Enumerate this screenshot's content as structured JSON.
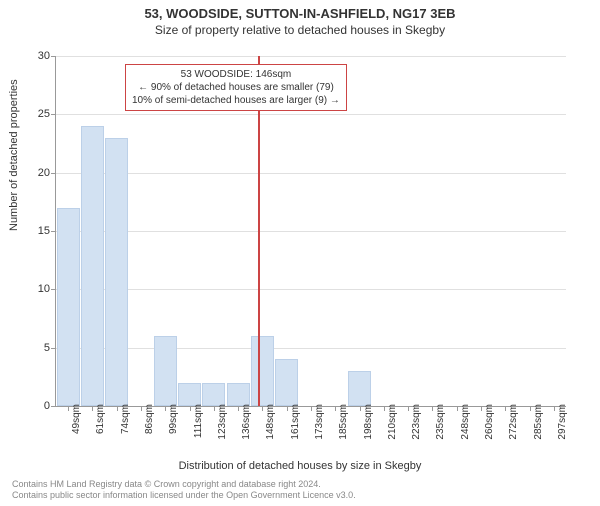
{
  "title": "53, WOODSIDE, SUTTON-IN-ASHFIELD, NG17 3EB",
  "subtitle": "Size of property relative to detached houses in Skegby",
  "ylabel": "Number of detached properties",
  "xlabel": "Distribution of detached houses by size in Skegby",
  "footer_line1": "Contains HM Land Registry data © Crown copyright and database right 2024.",
  "footer_line2": "Contains public sector information licensed under the Open Government Licence v3.0.",
  "chart": {
    "type": "histogram",
    "ylim": [
      0,
      30
    ],
    "ytick_step": 5,
    "background_color": "#ffffff",
    "grid_color": "#e0e0e0",
    "axis_color": "#999999",
    "bar_color": "#d2e1f2",
    "bar_border_color": "#bcd0e8",
    "refline_color": "#cc4444",
    "refline_value": 146,
    "tick_fontsize": 11,
    "xtick_fontsize": 10,
    "label_fontsize": 11,
    "categories": [
      "49sqm",
      "61sqm",
      "74sqm",
      "86sqm",
      "99sqm",
      "111sqm",
      "123sqm",
      "136sqm",
      "148sqm",
      "161sqm",
      "173sqm",
      "185sqm",
      "198sqm",
      "210sqm",
      "223sqm",
      "235sqm",
      "248sqm",
      "260sqm",
      "272sqm",
      "285sqm",
      "297sqm"
    ],
    "values": [
      17,
      24,
      23,
      0,
      6,
      2,
      2,
      2,
      6,
      4,
      0,
      0,
      3,
      0,
      0,
      0,
      0,
      0,
      0,
      0,
      0
    ],
    "annotation": {
      "line1": "53 WOODSIDE: 146sqm",
      "line2": "← 90% of detached houses are smaller (79)",
      "line3": "10% of semi-detached houses are larger (9) →",
      "border_color": "#cc4444",
      "background_color": "#ffffff",
      "fontsize": 10
    }
  }
}
